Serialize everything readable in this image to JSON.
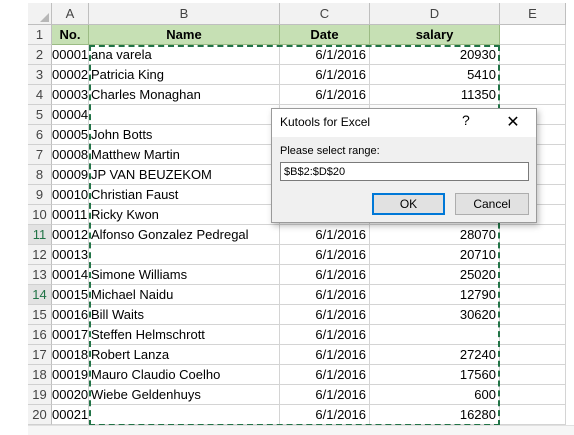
{
  "columns": [
    "A",
    "B",
    "C",
    "D",
    "E"
  ],
  "rowNumbers": [
    "1",
    "2",
    "3",
    "4",
    "5",
    "6",
    "7",
    "8",
    "9",
    "10",
    "11",
    "12",
    "13",
    "14",
    "15",
    "16",
    "17",
    "18",
    "19",
    "20"
  ],
  "highlightedRows": [
    "11",
    "14"
  ],
  "headers": {
    "no": "No.",
    "name": "Name",
    "date": "Date",
    "salary": "salary"
  },
  "rows": [
    {
      "no": "00001",
      "name": "ana varela",
      "date": "6/1/2016",
      "salary": "20930"
    },
    {
      "no": "00002",
      "name": "Patricia King",
      "date": "6/1/2016",
      "salary": "5410"
    },
    {
      "no": "00003",
      "name": "Charles Monaghan",
      "date": "6/1/2016",
      "salary": "11350"
    },
    {
      "no": "00004",
      "name": "",
      "date": "",
      "salary": ""
    },
    {
      "no": "00005",
      "name": "John Botts",
      "date": "",
      "salary": ""
    },
    {
      "no": "00008",
      "name": "Matthew Martin",
      "date": "",
      "salary": ""
    },
    {
      "no": "00009",
      "name": "JP VAN BEUZEKOM",
      "date": "",
      "salary": ""
    },
    {
      "no": "00010",
      "name": "Christian Faust",
      "date": "",
      "salary": ""
    },
    {
      "no": "00011",
      "name": "Ricky Kwon",
      "date": "",
      "salary": ""
    },
    {
      "no": "00012",
      "name": "Alfonso Gonzalez Pedregal",
      "date": "6/1/2016",
      "salary": "28070"
    },
    {
      "no": "00013",
      "name": "",
      "date": "6/1/2016",
      "salary": "20710"
    },
    {
      "no": "00014",
      "name": "Simone Williams",
      "date": "6/1/2016",
      "salary": "25020"
    },
    {
      "no": "00015",
      "name": "Michael Naidu",
      "date": "6/1/2016",
      "salary": "12790"
    },
    {
      "no": "00016",
      "name": "Bill Waits",
      "date": "6/1/2016",
      "salary": "30620"
    },
    {
      "no": "00017",
      "name": "Steffen Helmschrott",
      "date": "6/1/2016",
      "salary": ""
    },
    {
      "no": "00018",
      "name": "Robert Lanza",
      "date": "6/1/2016",
      "salary": "27240"
    },
    {
      "no": "00019",
      "name": "Mauro Claudio Coelho",
      "date": "6/1/2016",
      "salary": "17560"
    },
    {
      "no": "00020",
      "name": "Wiebe Geldenhuys",
      "date": "6/1/2016",
      "salary": "600"
    },
    {
      "no": "00021",
      "name": "",
      "date": "6/1/2016",
      "salary": "16280"
    }
  ],
  "dialog": {
    "title": "Kutools for Excel",
    "help": "?",
    "close": "✕",
    "label": "Please select range:",
    "rangeValue": "$B$2:$D$20",
    "ok": "OK",
    "cancel": "Cancel"
  },
  "colors": {
    "headerFill": "#c6e0b4",
    "marquee": "#217346",
    "accent": "#0078d7"
  }
}
